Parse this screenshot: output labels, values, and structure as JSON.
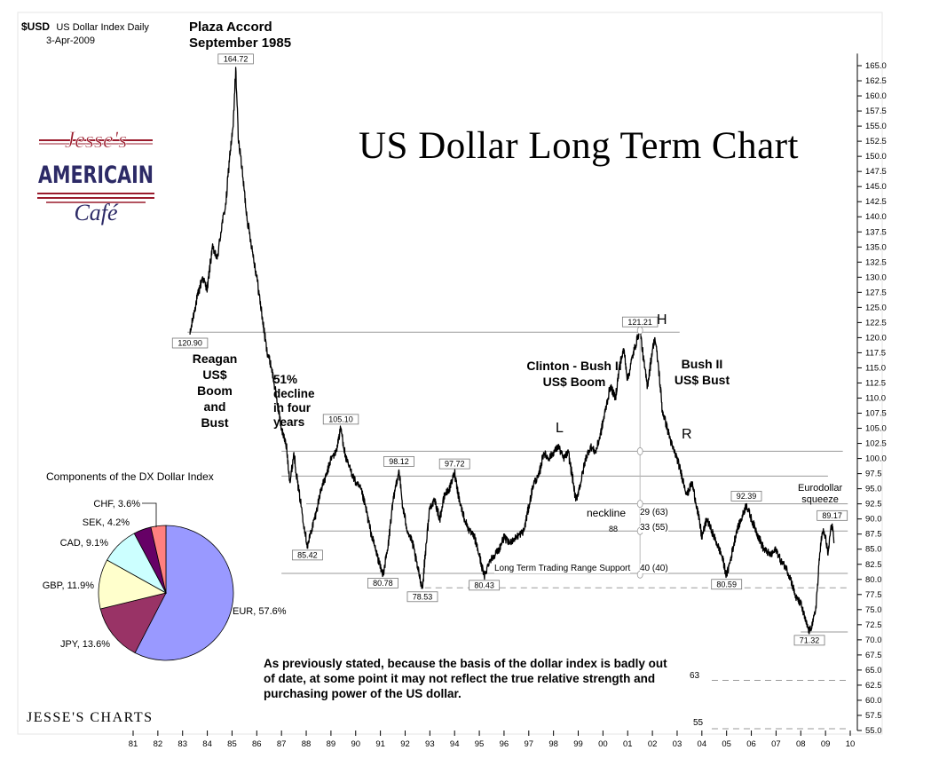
{
  "header": {
    "symbol": "$USD",
    "name": "US Dollar Index  Daily",
    "date": "3-Apr-2009"
  },
  "plaza": {
    "line1": "Plaza Accord",
    "line2": "September 1985"
  },
  "title": "US Dollar Long Term Chart",
  "logo": {
    "word1": "Jesse's",
    "word2": "AMERICAIN",
    "word3": "Café"
  },
  "footer_brand": "JESSE'S CHARTS",
  "note": "As previously stated, because the basis of the dollar index is badly out of date, at some point it may not reflect the true relative strength and purchasing power of the US dollar.",
  "annotations": {
    "reagan": [
      "Reagan",
      "US$",
      "Boom",
      "and",
      "Bust"
    ],
    "decline": [
      "51%",
      "decline",
      "in four",
      "years"
    ],
    "clinton": [
      "Clinton - Bush II",
      "US$ Boom"
    ],
    "bush": [
      "Bush II",
      "US$ Bust"
    ],
    "L": "L",
    "H": "H",
    "R": "R",
    "eurodollar": [
      "Eurodollar",
      "squeeze"
    ],
    "neckline": "neckline",
    "ltr_support": "Long Term Trading Range Support",
    "n88": "88",
    "m29": "29  (63)",
    "m33": "33  (55)",
    "m40": "40  (40)",
    "l63": "63",
    "l55": "55"
  },
  "chart_data": [
    {
      "type": "line",
      "title": "US Dollar Long Term Chart",
      "series_name": "US Dollar Index Daily",
      "x_ticks": [
        "81",
        "82",
        "83",
        "84",
        "85",
        "86",
        "87",
        "88",
        "89",
        "90",
        "91",
        "92",
        "93",
        "94",
        "95",
        "96",
        "97",
        "98",
        "99",
        "00",
        "01",
        "02",
        "03",
        "04",
        "05",
        "06",
        "07",
        "08",
        "09",
        "10"
      ],
      "y_ticks": [
        55.0,
        57.5,
        60.0,
        62.5,
        65.0,
        67.5,
        70.0,
        72.5,
        75.0,
        77.5,
        80.0,
        82.5,
        85.0,
        87.5,
        90.0,
        92.5,
        95.0,
        97.5,
        100.0,
        102.5,
        105.0,
        107.5,
        110.0,
        112.5,
        115.0,
        117.5,
        120.0,
        122.5,
        125.0,
        127.5,
        130.0,
        132.5,
        135.0,
        137.5,
        140.0,
        142.5,
        145.0,
        147.5,
        150.0,
        152.5,
        155.0,
        157.5,
        160.0,
        162.5,
        165.0
      ],
      "ylim": [
        55.0,
        167.0
      ],
      "xlim": [
        1980.5,
        2010.5
      ],
      "points": [
        [
          1983.3,
          120.5
        ],
        [
          1983.5,
          125
        ],
        [
          1983.8,
          130
        ],
        [
          1984.0,
          128
        ],
        [
          1984.2,
          135
        ],
        [
          1984.4,
          133
        ],
        [
          1984.6,
          139
        ],
        [
          1984.75,
          142
        ],
        [
          1984.9,
          150
        ],
        [
          1985.05,
          155
        ],
        [
          1985.15,
          164.72
        ],
        [
          1985.25,
          153
        ],
        [
          1985.35,
          150
        ],
        [
          1985.45,
          146
        ],
        [
          1985.6,
          140
        ],
        [
          1985.8,
          135
        ],
        [
          1986.0,
          130
        ],
        [
          1986.2,
          124
        ],
        [
          1986.4,
          118
        ],
        [
          1986.6,
          115
        ],
        [
          1986.8,
          110
        ],
        [
          1987.0,
          105
        ],
        [
          1987.2,
          102
        ],
        [
          1987.35,
          96
        ],
        [
          1987.5,
          101
        ],
        [
          1987.65,
          96
        ],
        [
          1987.8,
          92
        ],
        [
          1987.95,
          88
        ],
        [
          1988.05,
          85.42
        ],
        [
          1988.2,
          88
        ],
        [
          1988.4,
          91
        ],
        [
          1988.6,
          95
        ],
        [
          1988.8,
          97
        ],
        [
          1989.0,
          100
        ],
        [
          1989.2,
          101
        ],
        [
          1989.4,
          105.1
        ],
        [
          1989.6,
          100
        ],
        [
          1989.8,
          98
        ],
        [
          1990.0,
          96
        ],
        [
          1990.2,
          95
        ],
        [
          1990.4,
          92
        ],
        [
          1990.6,
          88
        ],
        [
          1990.8,
          85
        ],
        [
          1991.0,
          82
        ],
        [
          1991.1,
          80.78
        ],
        [
          1991.3,
          85
        ],
        [
          1991.45,
          91
        ],
        [
          1991.6,
          95
        ],
        [
          1991.75,
          98.12
        ],
        [
          1991.9,
          92
        ],
        [
          1992.1,
          88
        ],
        [
          1992.3,
          86
        ],
        [
          1992.5,
          82
        ],
        [
          1992.7,
          78.53
        ],
        [
          1992.85,
          86
        ],
        [
          1993.0,
          92
        ],
        [
          1993.2,
          93
        ],
        [
          1993.4,
          90
        ],
        [
          1993.6,
          94
        ],
        [
          1993.8,
          95
        ],
        [
          1994.0,
          97.72
        ],
        [
          1994.2,
          93
        ],
        [
          1994.4,
          90
        ],
        [
          1994.6,
          88
        ],
        [
          1994.8,
          87
        ],
        [
          1995.0,
          84
        ],
        [
          1995.2,
          80.43
        ],
        [
          1995.4,
          83
        ],
        [
          1995.6,
          84
        ],
        [
          1995.8,
          85
        ],
        [
          1996.0,
          87
        ],
        [
          1996.2,
          86
        ],
        [
          1996.5,
          87
        ],
        [
          1996.8,
          88
        ],
        [
          1997.0,
          92
        ],
        [
          1997.2,
          96
        ],
        [
          1997.4,
          97
        ],
        [
          1997.6,
          101
        ],
        [
          1997.8,
          100
        ],
        [
          1998.0,
          101
        ],
        [
          1998.2,
          102
        ],
        [
          1998.4,
          100
        ],
        [
          1998.6,
          101
        ],
        [
          1998.8,
          96
        ],
        [
          1998.9,
          93
        ],
        [
          1999.1,
          96
        ],
        [
          1999.3,
          100
        ],
        [
          1999.5,
          102
        ],
        [
          1999.7,
          101
        ],
        [
          1999.9,
          104
        ],
        [
          2000.1,
          108
        ],
        [
          2000.3,
          112
        ],
        [
          2000.5,
          110
        ],
        [
          2000.7,
          116
        ],
        [
          2000.85,
          118
        ],
        [
          2001.0,
          113
        ],
        [
          2001.2,
          117
        ],
        [
          2001.4,
          120
        ],
        [
          2001.5,
          121.21
        ],
        [
          2001.65,
          116
        ],
        [
          2001.8,
          112
        ],
        [
          2002.0,
          118
        ],
        [
          2002.1,
          120
        ],
        [
          2002.25,
          115
        ],
        [
          2002.4,
          108
        ],
        [
          2002.6,
          105
        ],
        [
          2002.8,
          102
        ],
        [
          2003.0,
          100
        ],
        [
          2003.2,
          97
        ],
        [
          2003.4,
          94
        ],
        [
          2003.6,
          96
        ],
        [
          2003.8,
          92
        ],
        [
          2004.0,
          87
        ],
        [
          2004.2,
          90
        ],
        [
          2004.4,
          88
        ],
        [
          2004.6,
          86
        ],
        [
          2004.8,
          84
        ],
        [
          2005.0,
          80.59
        ],
        [
          2005.2,
          84
        ],
        [
          2005.4,
          88
        ],
        [
          2005.6,
          90
        ],
        [
          2005.8,
          92.39
        ],
        [
          2006.0,
          90
        ],
        [
          2006.2,
          88
        ],
        [
          2006.5,
          85
        ],
        [
          2006.8,
          84
        ],
        [
          2007.0,
          85
        ],
        [
          2007.2,
          83
        ],
        [
          2007.4,
          82
        ],
        [
          2007.6,
          80
        ],
        [
          2007.8,
          77
        ],
        [
          2008.0,
          76
        ],
        [
          2008.2,
          73
        ],
        [
          2008.35,
          71.32
        ],
        [
          2008.5,
          73
        ],
        [
          2008.6,
          75
        ],
        [
          2008.7,
          80
        ],
        [
          2008.8,
          86
        ],
        [
          2008.9,
          88
        ],
        [
          2009.0,
          87
        ],
        [
          2009.1,
          84
        ],
        [
          2009.2,
          88
        ],
        [
          2009.27,
          89.17
        ],
        [
          2009.35,
          86
        ]
      ]
    },
    {
      "type": "pie",
      "title": "Components of the DX Dollar Index",
      "slices": [
        {
          "label": "EUR, 57.6%",
          "value": 57.6,
          "color": "#9999ff"
        },
        {
          "label": "JPY, 13.6%",
          "value": 13.6,
          "color": "#993366"
        },
        {
          "label": "GBP, 11.9%",
          "value": 11.9,
          "color": "#ffffcc"
        },
        {
          "label": "CAD, 9.1%",
          "value": 9.1,
          "color": "#ccffff"
        },
        {
          "label": "SEK, 4.2%",
          "value": 4.2,
          "color": "#660066"
        },
        {
          "label": "CHF, 3.6%",
          "value": 3.6,
          "color": "#ff8080"
        }
      ]
    }
  ],
  "peak_labels": [
    "164.72",
    "120.90",
    "105.10",
    "85.42",
    "98.12",
    "80.78",
    "97.72",
    "78.53",
    "80.43",
    "121.21",
    "80.59",
    "92.39",
    "89.17",
    "71.32"
  ]
}
